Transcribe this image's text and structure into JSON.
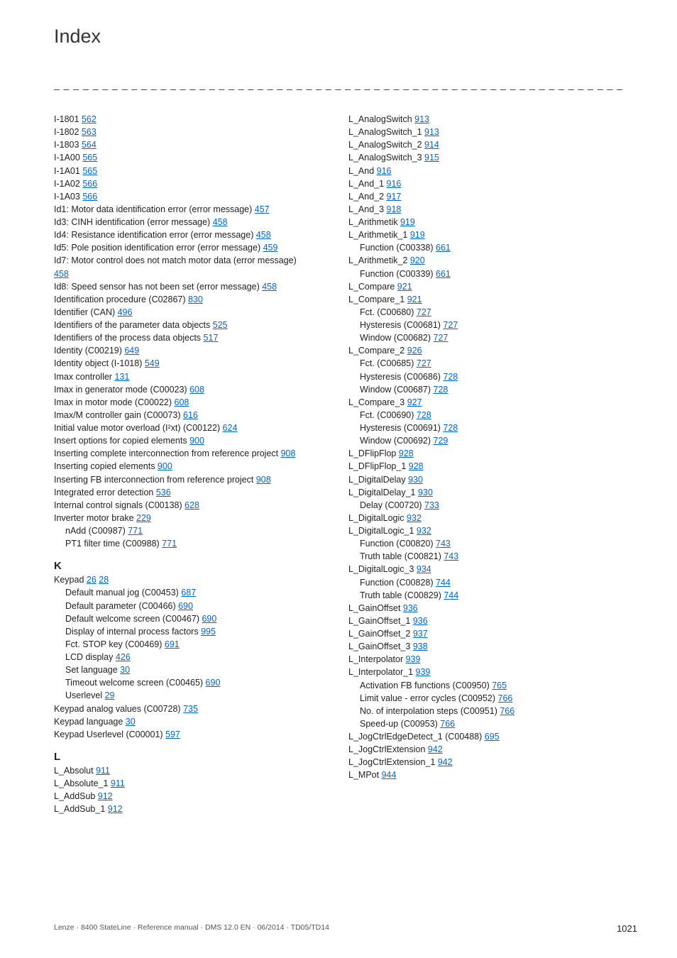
{
  "title": "Index",
  "separator": "_ _ _ _ _ _ _ _ _ _ _ _ _ _ _ _ _ _ _ _ _ _ _ _ _ _ _ _ _ _ _ _ _ _ _ _ _ _ _ _ _ _ _ _ _ _ _ _ _ _ _ _ _ _ _ _ _ _ _ _ _ _ _ _",
  "footer": {
    "left": "Lenze · 8400 StateLine · Reference manual · DMS 12.0 EN · 06/2014 · TD05/TD14",
    "page": "1021"
  },
  "left_entries": [
    {
      "type": "item",
      "text": "I-1801",
      "page": "562"
    },
    {
      "type": "item",
      "text": "I-1802",
      "page": "563"
    },
    {
      "type": "item",
      "text": "I-1803",
      "page": "564"
    },
    {
      "type": "item",
      "text": "I-1A00",
      "page": "565"
    },
    {
      "type": "item",
      "text": "I-1A01",
      "page": "565"
    },
    {
      "type": "item",
      "text": "I-1A02",
      "page": "566"
    },
    {
      "type": "item",
      "text": "I-1A03",
      "page": "566"
    },
    {
      "type": "item",
      "text": "Id1: Motor data identification error (error message)",
      "page": "457"
    },
    {
      "type": "item",
      "text": "Id3: CINH identification (error message)",
      "page": "458"
    },
    {
      "type": "item",
      "text": "Id4: Resistance identification error (error message)",
      "page": "458"
    },
    {
      "type": "item",
      "text": "Id5: Pole position identification error (error message)",
      "page": "459"
    },
    {
      "type": "item",
      "text": "Id7: Motor control does not match motor data (error message)",
      "page": "458",
      "wrap": true
    },
    {
      "type": "item",
      "text": "Id8: Speed sensor has not been set (error message)",
      "page": "458"
    },
    {
      "type": "item",
      "text": "Identification procedure (C02867)",
      "page": "830"
    },
    {
      "type": "item",
      "text": "Identifier (CAN)",
      "page": "496"
    },
    {
      "type": "item",
      "text": "Identifiers of the parameter data objects",
      "page": "525"
    },
    {
      "type": "item",
      "text": "Identifiers of the process data objects",
      "page": "517"
    },
    {
      "type": "item",
      "text": "Identity (C00219)",
      "page": "649"
    },
    {
      "type": "item",
      "text": "Identity object (I-1018)",
      "page": "549"
    },
    {
      "type": "item",
      "text": "Imax controller",
      "page": "131"
    },
    {
      "type": "item",
      "text": "Imax in generator mode (C00023)",
      "page": "608"
    },
    {
      "type": "item",
      "text": "Imax in motor mode (C00022)",
      "page": "608"
    },
    {
      "type": "item",
      "text": "Imax/M controller gain (C00073)",
      "page": "616"
    },
    {
      "type": "item",
      "text": "Initial value motor overload (I²xt) (C00122)",
      "page": "624"
    },
    {
      "type": "item",
      "text": "Insert options for copied elements",
      "page": "900"
    },
    {
      "type": "item",
      "text": "Inserting complete interconnection from reference project",
      "page": "908"
    },
    {
      "type": "item",
      "text": "Inserting copied elements",
      "page": "900"
    },
    {
      "type": "item",
      "text": "Inserting FB interconnection from reference project",
      "page": "908"
    },
    {
      "type": "item",
      "text": "Integrated error detection",
      "page": "536"
    },
    {
      "type": "item",
      "text": "Internal control signals (C00138)",
      "page": "628"
    },
    {
      "type": "item",
      "text": "Inverter motor brake",
      "page": "229"
    },
    {
      "type": "sub",
      "text": "nAdd (C00987)",
      "page": "771"
    },
    {
      "type": "sub",
      "text": "PT1 filter time (C00988)",
      "page": "771"
    },
    {
      "type": "letter",
      "text": "K"
    },
    {
      "type": "item",
      "text": "Keypad",
      "page": "26",
      "extra_pages": [
        "28"
      ]
    },
    {
      "type": "sub",
      "text": "Default manual jog (C00453)",
      "page": "687"
    },
    {
      "type": "sub",
      "text": "Default parameter (C00466)",
      "page": "690"
    },
    {
      "type": "sub",
      "text": "Default welcome screen (C00467)",
      "page": "690"
    },
    {
      "type": "sub",
      "text": "Display of internal process factors",
      "page": "995"
    },
    {
      "type": "sub",
      "text": "Fct. STOP key (C00469)",
      "page": "691"
    },
    {
      "type": "sub",
      "text": "LCD display",
      "page": "426"
    },
    {
      "type": "sub",
      "text": "Set language",
      "page": "30"
    },
    {
      "type": "sub",
      "text": "Timeout welcome screen (C00465)",
      "page": "690"
    },
    {
      "type": "sub",
      "text": "Userlevel",
      "page": "29"
    },
    {
      "type": "item",
      "text": "Keypad analog values (C00728)",
      "page": "735"
    },
    {
      "type": "item",
      "text": "Keypad language",
      "page": "30"
    },
    {
      "type": "item",
      "text": "Keypad Userlevel (C00001)",
      "page": "597"
    },
    {
      "type": "letter",
      "text": "L"
    },
    {
      "type": "item",
      "text": "L_Absolut",
      "page": "911"
    },
    {
      "type": "item",
      "text": "L_Absolute_1",
      "page": "911"
    },
    {
      "type": "item",
      "text": "L_AddSub",
      "page": "912"
    },
    {
      "type": "item",
      "text": "L_AddSub_1",
      "page": "912"
    }
  ],
  "right_entries": [
    {
      "type": "item",
      "text": "L_AnalogSwitch",
      "page": "913"
    },
    {
      "type": "item",
      "text": "L_AnalogSwitch_1",
      "page": "913"
    },
    {
      "type": "item",
      "text": "L_AnalogSwitch_2",
      "page": "914"
    },
    {
      "type": "item",
      "text": "L_AnalogSwitch_3",
      "page": "915"
    },
    {
      "type": "item",
      "text": "L_And",
      "page": "916"
    },
    {
      "type": "item",
      "text": "L_And_1",
      "page": "916"
    },
    {
      "type": "item",
      "text": "L_And_2",
      "page": "917"
    },
    {
      "type": "item",
      "text": "L_And_3",
      "page": "918"
    },
    {
      "type": "item",
      "text": "L_Arithmetik",
      "page": "919"
    },
    {
      "type": "item",
      "text": "L_Arithmetik_1",
      "page": "919"
    },
    {
      "type": "sub",
      "text": "Function (C00338)",
      "page": "661"
    },
    {
      "type": "item",
      "text": "L_Arithmetik_2",
      "page": "920"
    },
    {
      "type": "sub",
      "text": "Function (C00339)",
      "page": "661"
    },
    {
      "type": "item",
      "text": "L_Compare",
      "page": "921"
    },
    {
      "type": "item",
      "text": "L_Compare_1",
      "page": "921"
    },
    {
      "type": "sub",
      "text": "Fct. (C00680)",
      "page": "727"
    },
    {
      "type": "sub",
      "text": "Hysteresis (C00681)",
      "page": "727"
    },
    {
      "type": "sub",
      "text": "Window (C00682)",
      "page": "727"
    },
    {
      "type": "item",
      "text": "L_Compare_2",
      "page": "926"
    },
    {
      "type": "sub",
      "text": "Fct. (C00685)",
      "page": "727"
    },
    {
      "type": "sub",
      "text": "Hysteresis (C00686)",
      "page": "728"
    },
    {
      "type": "sub",
      "text": "Window (C00687)",
      "page": "728"
    },
    {
      "type": "item",
      "text": "L_Compare_3",
      "page": "927"
    },
    {
      "type": "sub",
      "text": "Fct. (C00690)",
      "page": "728"
    },
    {
      "type": "sub",
      "text": "Hysteresis (C00691)",
      "page": "728"
    },
    {
      "type": "sub",
      "text": "Window (C00692)",
      "page": "729"
    },
    {
      "type": "item",
      "text": "L_DFlipFlop",
      "page": "928"
    },
    {
      "type": "item",
      "text": "L_DFlipFlop_1",
      "page": "928"
    },
    {
      "type": "item",
      "text": "L_DigitalDelay",
      "page": "930"
    },
    {
      "type": "item",
      "text": "L_DigitalDelay_1",
      "page": "930"
    },
    {
      "type": "sub",
      "text": "Delay (C00720)",
      "page": "733"
    },
    {
      "type": "item",
      "text": "L_DigitalLogic",
      "page": "932"
    },
    {
      "type": "item",
      "text": "L_DigitalLogic_1",
      "page": "932"
    },
    {
      "type": "sub",
      "text": "Function (C00820)",
      "page": "743"
    },
    {
      "type": "sub",
      "text": "Truth table (C00821)",
      "page": "743"
    },
    {
      "type": "item",
      "text": "L_DigitalLogic_3",
      "page": "934"
    },
    {
      "type": "sub",
      "text": "Function (C00828)",
      "page": "744"
    },
    {
      "type": "sub",
      "text": "Truth table (C00829)",
      "page": "744"
    },
    {
      "type": "item",
      "text": "L_GainOffset",
      "page": "936"
    },
    {
      "type": "item",
      "text": "L_GainOffset_1",
      "page": "936"
    },
    {
      "type": "item",
      "text": "L_GainOffset_2",
      "page": "937"
    },
    {
      "type": "item",
      "text": "L_GainOffset_3",
      "page": "938"
    },
    {
      "type": "item",
      "text": "L_Interpolator",
      "page": "939"
    },
    {
      "type": "item",
      "text": "L_Interpolator_1",
      "page": "939"
    },
    {
      "type": "sub",
      "text": "Activation FB functions (C00950)",
      "page": "765"
    },
    {
      "type": "sub",
      "text": "Limit value - error cycles (C00952)",
      "page": "766"
    },
    {
      "type": "sub",
      "text": "No. of interpolation steps (C00951)",
      "page": "766"
    },
    {
      "type": "sub",
      "text": "Speed-up (C00953)",
      "page": "766"
    },
    {
      "type": "item",
      "text": "L_JogCtrlEdgeDetect_1 (C00488)",
      "page": "695"
    },
    {
      "type": "item",
      "text": "L_JogCtrlExtension",
      "page": "942"
    },
    {
      "type": "item",
      "text": "L_JogCtrlExtension_1",
      "page": "942"
    },
    {
      "type": "item",
      "text": "L_MPot",
      "page": "944"
    }
  ]
}
